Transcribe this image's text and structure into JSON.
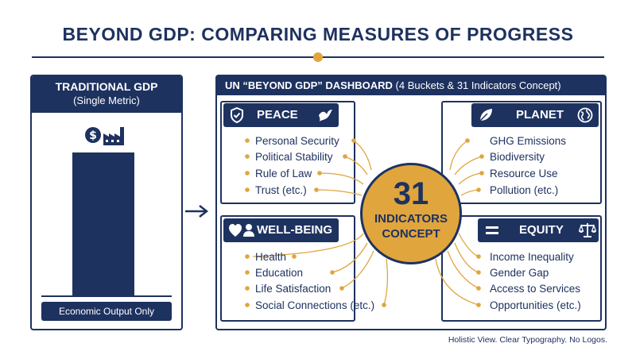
{
  "title": "BEYOND GDP: COMPARING MEASURES OF PROGRESS",
  "colors": {
    "navy": "#1e3260",
    "gold": "#e0a53d",
    "white": "#ffffff"
  },
  "left_panel": {
    "title": "TRADITIONAL GDP",
    "subtitle": "(Single Metric)",
    "icon": "dollar-factory-icon",
    "footer": "Economic Output Only"
  },
  "right_panel": {
    "title_bold": "UN “BEYOND GDP” DASHBOARD",
    "title_rest": " (4 Buckets & 31 Indicators Concept)"
  },
  "center": {
    "number": "31",
    "line1": "INDICATORS",
    "line2": "CONCEPT"
  },
  "buckets": {
    "peace": {
      "label": "PEACE",
      "icons": [
        "shield-icon",
        "dove-icon"
      ],
      "items": [
        "Personal Security",
        "Political Stability",
        "Rule of Law",
        "Trust (etc.)"
      ]
    },
    "planet": {
      "label": "PLANET",
      "icons": [
        "leaf-icon",
        "globe-icon"
      ],
      "items": [
        "GHG Emissions",
        "Biodiversity",
        "Resource Use",
        "Pollution (etc.)"
      ]
    },
    "wellbeing": {
      "label": "WELL-BEING",
      "icons": [
        "heart-person-icon"
      ],
      "items": [
        "Health",
        "Education",
        "Life Satisfaction",
        "Social Connections (etc.)"
      ]
    },
    "equity": {
      "label": "EQUITY",
      "icons": [
        "equals-icon",
        "scales-icon"
      ],
      "items": [
        "Income Inequality",
        "Gender Gap",
        "Access to Services",
        "Opportunities (etc.)"
      ]
    }
  },
  "footnote": "Holistic View. Clear Typography. No Logos."
}
